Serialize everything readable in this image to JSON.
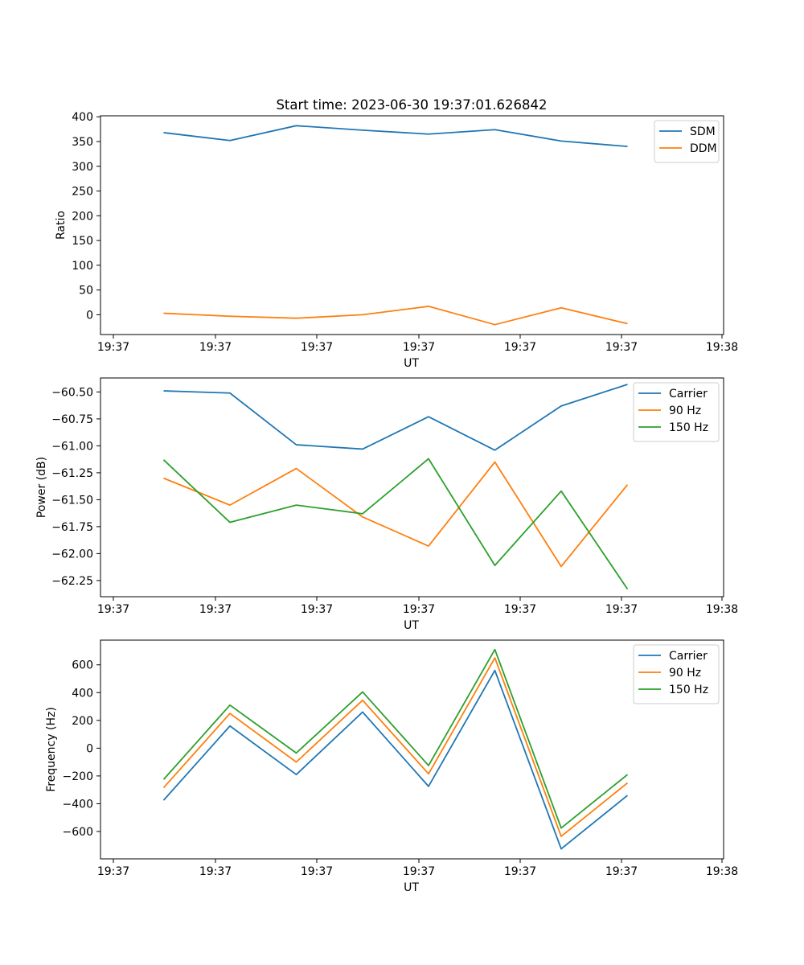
{
  "figure_title": "Start time: 2023-06-30 19:37:01.626842",
  "colors": {
    "blue": "#1f77b4",
    "orange": "#ff7f0e",
    "green": "#2ca02c"
  },
  "chart_data": [
    {
      "type": "line",
      "title": "Start time: 2023-06-30 19:37:01.626842",
      "xlabel": "UT",
      "ylabel": "Ratio",
      "x_tick_labels": [
        "19:37",
        "19:37",
        "19:37",
        "19:37",
        "19:37",
        "19:37",
        "19:38"
      ],
      "y_ticks": [
        0,
        50,
        100,
        150,
        200,
        250,
        300,
        350,
        400
      ],
      "y_tick_labels": [
        "0",
        "50",
        "100",
        "150",
        "200",
        "250",
        "300",
        "350",
        "400"
      ],
      "ylim": [
        -40,
        402
      ],
      "legend_position": "top-right",
      "series": [
        {
          "name": "SDM",
          "color": "#1f77b4",
          "values": [
            368,
            352,
            382,
            373,
            365,
            374,
            351,
            340
          ]
        },
        {
          "name": "DDM",
          "color": "#ff7f0e",
          "values": [
            3,
            -3,
            -7,
            0,
            17,
            -20,
            14,
            -18
          ]
        }
      ]
    },
    {
      "type": "line",
      "title": "",
      "xlabel": "UT",
      "ylabel": "Power (dB)",
      "x_tick_labels": [
        "19:37",
        "19:37",
        "19:37",
        "19:37",
        "19:37",
        "19:37",
        "19:38"
      ],
      "y_ticks": [
        -60.5,
        -60.75,
        -61.0,
        -61.25,
        -61.5,
        -61.75,
        -62.0,
        -62.25
      ],
      "y_tick_labels": [
        "−60.50",
        "−60.75",
        "−61.00",
        "−61.25",
        "−61.50",
        "−61.75",
        "−62.00",
        "−62.25"
      ],
      "ylim": [
        -62.4,
        -60.37
      ],
      "legend_position": "top-right",
      "series": [
        {
          "name": "Carrier",
          "color": "#1f77b4",
          "values": [
            -60.49,
            -60.51,
            -60.99,
            -61.03,
            -60.73,
            -61.04,
            -60.63,
            -60.43
          ]
        },
        {
          "name": "90 Hz",
          "color": "#ff7f0e",
          "values": [
            -61.3,
            -61.55,
            -61.21,
            -61.66,
            -61.93,
            -61.15,
            -62.12,
            -61.36
          ]
        },
        {
          "name": "150 Hz",
          "color": "#2ca02c",
          "values": [
            -61.13,
            -61.71,
            -61.55,
            -61.63,
            -61.12,
            -62.11,
            -61.42,
            -62.33
          ]
        }
      ]
    },
    {
      "type": "line",
      "title": "",
      "xlabel": "UT",
      "ylabel": "Frequency (Hz)",
      "x_tick_labels": [
        "19:37",
        "19:37",
        "19:37",
        "19:37",
        "19:37",
        "19:37",
        "19:38"
      ],
      "y_ticks": [
        600,
        400,
        200,
        0,
        -200,
        -400,
        -600
      ],
      "y_tick_labels": [
        "600",
        "400",
        "200",
        "0",
        "−200",
        "−400",
        "−600"
      ],
      "ylim": [
        -797,
        778
      ],
      "legend_position": "top-right",
      "series": [
        {
          "name": "Carrier",
          "color": "#1f77b4",
          "values": [
            -375,
            160,
            -190,
            260,
            -275,
            560,
            -725,
            -340
          ]
        },
        {
          "name": "90 Hz",
          "color": "#ff7f0e",
          "values": [
            -285,
            250,
            -100,
            345,
            -185,
            650,
            -635,
            -250
          ]
        },
        {
          "name": "150 Hz",
          "color": "#2ca02c",
          "values": [
            -225,
            310,
            -35,
            405,
            -125,
            710,
            -575,
            -190
          ]
        }
      ]
    }
  ]
}
